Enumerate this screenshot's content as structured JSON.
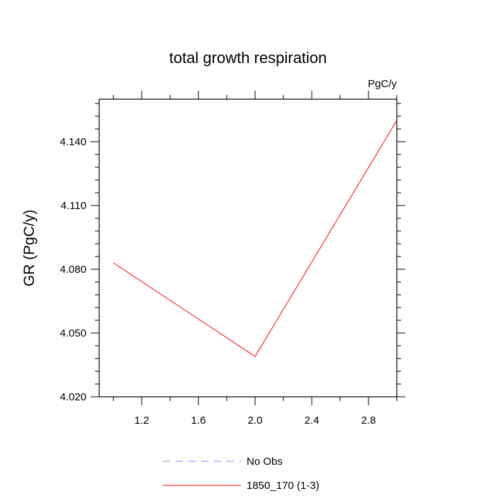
{
  "chart_data": {
    "type": "line",
    "title": "total growth respiration",
    "units_label": "PgC/y",
    "xlabel": "",
    "ylabel": "GR  (PgC/y)",
    "xlim": [
      0.9,
      3.0
    ],
    "ylim": [
      4.02,
      4.16
    ],
    "x_ticks": [
      1.2,
      1.6,
      2.0,
      2.4,
      2.8
    ],
    "x_tick_labels": [
      "1.2",
      "1.6",
      "2.0",
      "2.4",
      "2.8"
    ],
    "x_minor_ticks": [
      1.0,
      1.4,
      1.8,
      2.2,
      2.6,
      3.0
    ],
    "y_ticks": [
      4.02,
      4.05,
      4.08,
      4.11,
      4.14
    ],
    "y_tick_labels": [
      "4.020",
      "4.050",
      "4.080",
      "4.110",
      "4.140"
    ],
    "grid": false,
    "legend_position": "bottom",
    "series": [
      {
        "name": "1850_170 (1-3)",
        "color": "#ff0000",
        "dash": "solid",
        "x": [
          1.0,
          2.0,
          3.0
        ],
        "values": [
          4.083,
          4.039,
          4.15
        ]
      }
    ],
    "legend": [
      {
        "label": "No Obs",
        "color": "#8080ff",
        "dash": "dashed"
      },
      {
        "label": "1850_170 (1-3)",
        "color": "#ff0000",
        "dash": "solid"
      }
    ]
  }
}
